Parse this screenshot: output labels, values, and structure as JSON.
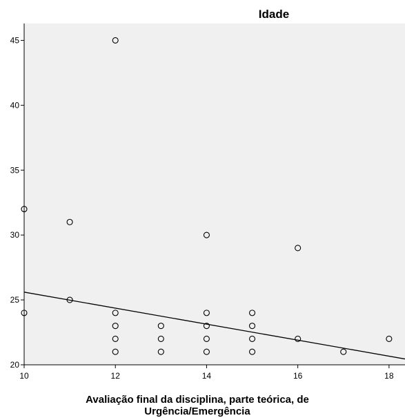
{
  "chart_data": {
    "type": "scatter",
    "title": "Idade",
    "xlabel_lines": [
      "Avaliação final da disciplina, parte teórica, de",
      "Urgência/Emergência"
    ],
    "ylabel": "",
    "xlim": [
      10,
      18.35
    ],
    "ylim": [
      20,
      46.3
    ],
    "xticks": [
      10,
      12,
      14,
      16,
      18
    ],
    "yticks": [
      20,
      25,
      30,
      35,
      40,
      45
    ],
    "grid": false,
    "legend": "none",
    "colors": {
      "plot_bg": "#f0f0f0",
      "marker": "#000000",
      "line": "#000000"
    },
    "points": [
      {
        "x": 10,
        "y": 32
      },
      {
        "x": 10,
        "y": 24
      },
      {
        "x": 11,
        "y": 31
      },
      {
        "x": 11,
        "y": 25
      },
      {
        "x": 12,
        "y": 45
      },
      {
        "x": 12,
        "y": 24
      },
      {
        "x": 12,
        "y": 23
      },
      {
        "x": 12,
        "y": 22
      },
      {
        "x": 12,
        "y": 21
      },
      {
        "x": 13,
        "y": 23
      },
      {
        "x": 13,
        "y": 22
      },
      {
        "x": 13,
        "y": 21
      },
      {
        "x": 14,
        "y": 30
      },
      {
        "x": 14,
        "y": 24
      },
      {
        "x": 14,
        "y": 23
      },
      {
        "x": 14,
        "y": 22
      },
      {
        "x": 14,
        "y": 21
      },
      {
        "x": 15,
        "y": 24
      },
      {
        "x": 15,
        "y": 23
      },
      {
        "x": 15,
        "y": 22
      },
      {
        "x": 15,
        "y": 21
      },
      {
        "x": 16,
        "y": 29
      },
      {
        "x": 16,
        "y": 22
      },
      {
        "x": 17,
        "y": 21
      },
      {
        "x": 18,
        "y": 22
      }
    ],
    "fit_line": {
      "x": [
        10,
        18.35
      ],
      "y": [
        25.6,
        20.45
      ]
    }
  }
}
